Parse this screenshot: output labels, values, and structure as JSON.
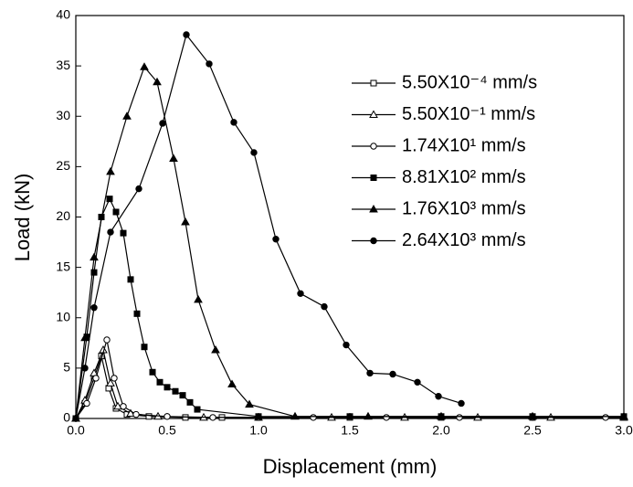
{
  "chart_data": {
    "type": "line",
    "xlabel": "Displacement (mm)",
    "ylabel": "Load (kN)",
    "xlim": [
      0,
      3
    ],
    "ylim": [
      0,
      40
    ],
    "xticks": [
      {
        "value": 0,
        "label": "0.0"
      },
      0.5,
      {
        "value": 1,
        "label": "1.0"
      },
      1.5,
      {
        "value": 2,
        "label": "2.0"
      },
      2.5,
      {
        "value": 3,
        "label": "3.0"
      }
    ],
    "yticks": [
      0,
      5,
      10,
      15,
      20,
      25,
      30,
      35,
      40
    ],
    "legend": "upper right",
    "series": [
      {
        "name": "5.50X10⁻⁴ mm/s",
        "color": "#000000",
        "marker": "square",
        "filled": false,
        "x": [
          0,
          0.05,
          0.1,
          0.14,
          0.18,
          0.22,
          0.28,
          0.4,
          0.6,
          0.8,
          1.0,
          1.5,
          2.0,
          2.5,
          3.0
        ],
        "values": [
          0,
          1.5,
          4,
          6.2,
          3,
          1,
          0.4,
          0.2,
          0.1,
          0.1,
          0.1,
          0.1,
          0.1,
          0.1,
          0.1
        ]
      },
      {
        "name": "5.50X10⁻¹ mm/s",
        "color": "#000000",
        "marker": "triangle",
        "filled": false,
        "x": [
          0,
          0.05,
          0.1,
          0.15,
          0.19,
          0.23,
          0.3,
          0.45,
          0.7,
          1.0,
          1.4,
          1.8,
          2.2,
          2.6,
          3.0
        ],
        "values": [
          0,
          1.8,
          4.5,
          6.8,
          3.5,
          1.2,
          0.5,
          0.2,
          0.1,
          0.1,
          0.1,
          0.1,
          0.1,
          0.1,
          0.1
        ]
      },
      {
        "name": "1.74X10¹ mm/s",
        "color": "#000000",
        "marker": "circle",
        "filled": false,
        "x": [
          0,
          0.06,
          0.11,
          0.17,
          0.21,
          0.26,
          0.33,
          0.5,
          0.75,
          1.0,
          1.3,
          1.7,
          2.1,
          2.5,
          2.9
        ],
        "values": [
          0,
          1.5,
          4,
          7.8,
          4,
          1.2,
          0.4,
          0.2,
          0.1,
          0.1,
          0.1,
          0.1,
          0.1,
          0.1,
          0.1
        ]
      },
      {
        "name": "8.81X10² mm/s",
        "color": "#000000",
        "marker": "square",
        "filled": true,
        "x": [
          0,
          0.06,
          0.1,
          0.14,
          0.185,
          0.22,
          0.26,
          0.3,
          0.335,
          0.375,
          0.42,
          0.46,
          0.5,
          0.545,
          0.585,
          0.625,
          0.665,
          1.0,
          1.5,
          2.0,
          2.5,
          3.0
        ],
        "values": [
          0,
          8.1,
          14.5,
          20,
          21.8,
          20.5,
          18.4,
          13.8,
          10.4,
          7.1,
          4.6,
          3.6,
          3.1,
          2.7,
          2.3,
          1.6,
          0.9,
          0.2,
          0.2,
          0.2,
          0.2,
          0.2
        ]
      },
      {
        "name": "1.76X10³ mm/s",
        "color": "#000000",
        "marker": "triangle",
        "filled": true,
        "x": [
          0,
          0.05,
          0.1,
          0.19,
          0.28,
          0.375,
          0.445,
          0.535,
          0.6,
          0.67,
          0.765,
          0.855,
          0.95,
          1.2,
          1.6,
          2.0,
          2.5,
          3.0
        ],
        "values": [
          0,
          8,
          16,
          24.5,
          30,
          34.9,
          33.4,
          25.8,
          19.5,
          11.8,
          6.8,
          3.4,
          1.4,
          0.2,
          0.2,
          0.2,
          0.2,
          0.2
        ]
      },
      {
        "name": "2.64X10³ mm/s",
        "color": "#000000",
        "marker": "circle",
        "filled": true,
        "x": [
          0,
          0.05,
          0.1,
          0.19,
          0.345,
          0.475,
          0.605,
          0.73,
          0.865,
          0.975,
          1.095,
          1.23,
          1.36,
          1.48,
          1.61,
          1.735,
          1.87,
          1.985,
          2.11
        ],
        "values": [
          0,
          5,
          11,
          18.5,
          22.8,
          29.3,
          38.1,
          35.2,
          29.4,
          26.4,
          17.8,
          12.4,
          11.1,
          7.3,
          4.5,
          4.4,
          3.6,
          2.2,
          1.5
        ]
      }
    ]
  }
}
